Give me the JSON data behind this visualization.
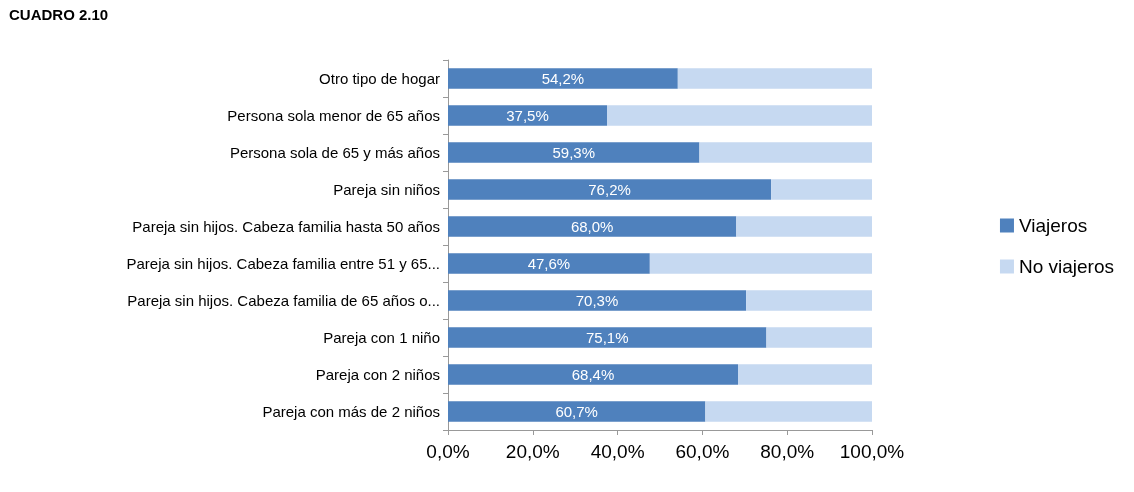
{
  "chart_data": {
    "type": "bar",
    "orientation": "horizontal",
    "stacked": true,
    "title": "CUADRO 2.10",
    "categories": [
      "Otro tipo de hogar",
      "Persona sola menor de 65 años",
      "Persona sola de 65 y más años",
      "Pareja sin niños",
      "Pareja sin hijos. Cabeza familia hasta 50 años",
      "Pareja sin hijos. Cabeza familia entre 51 y 65...",
      "Pareja sin hijos. Cabeza familia de 65 años o...",
      "Pareja con 1 niño",
      "Pareja con 2 niños",
      "Pareja con más de 2 niños"
    ],
    "series": [
      {
        "name": "Viajeros",
        "color": "#4f81bd",
        "values": [
          54.2,
          37.5,
          59.3,
          76.2,
          68.0,
          47.6,
          70.3,
          75.1,
          68.4,
          60.7
        ],
        "value_labels": [
          "54,2%",
          "37,5%",
          "59,3%",
          "76,2%",
          "68,0%",
          "47,6%",
          "70,3%",
          "75,1%",
          "68,4%",
          "60,7%"
        ]
      },
      {
        "name": "No viajeros",
        "color": "#c6d9f1",
        "values": [
          45.8,
          62.5,
          40.7,
          23.8,
          32.0,
          52.4,
          29.7,
          24.9,
          31.6,
          39.3
        ]
      }
    ],
    "xlim": [
      0,
      100
    ],
    "xticks": [
      {
        "value": 0,
        "label": "0,0%"
      },
      {
        "value": 20,
        "label": "20,0%"
      },
      {
        "value": 40,
        "label": "40,0%"
      },
      {
        "value": 60,
        "label": "60,0%"
      },
      {
        "value": 80,
        "label": "80,0%"
      },
      {
        "value": 100,
        "label": "100,0%"
      }
    ],
    "grid": false,
    "legend": "right"
  }
}
